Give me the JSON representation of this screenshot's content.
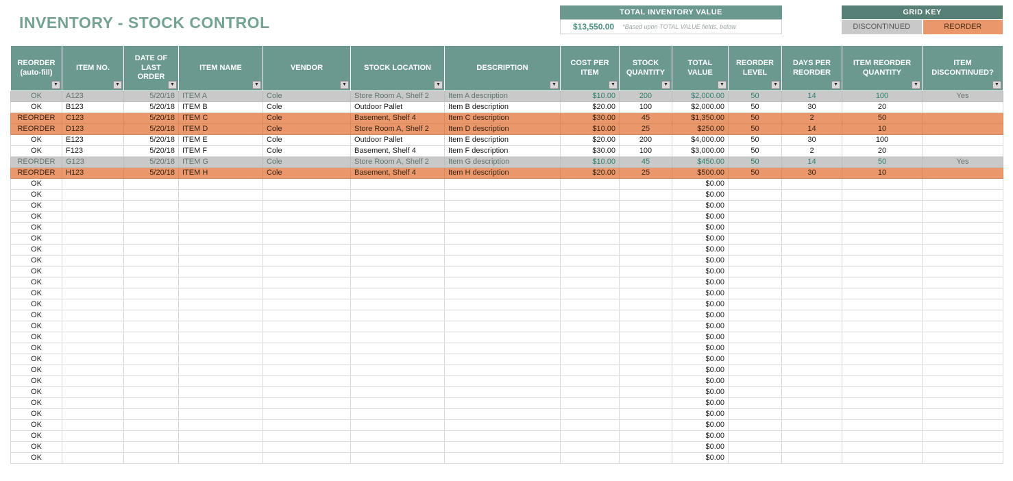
{
  "page": {
    "title": "INVENTORY - STOCK CONTROL"
  },
  "summary": {
    "title": "TOTAL INVENTORY VALUE",
    "value": "$13,550.00",
    "note": "*Based upon TOTAL VALUE fields, below."
  },
  "grid_key": {
    "title": "GRID KEY",
    "discontinued_label": "DISCONTINUED",
    "reorder_label": "REORDER"
  },
  "colors": {
    "teal_header": "#6B9990",
    "teal_dark": "#567F76",
    "title_text": "#74A294",
    "reorder_orange": "#E9976B",
    "discontinued_gray": "#C9C9C9",
    "value_text": "#4A9080"
  },
  "icons": {
    "filter_dropdown": "▼"
  },
  "table": {
    "columns": [
      {
        "key": "reorder",
        "label": "REORDER (auto-fill)"
      },
      {
        "key": "item-no",
        "label": "ITEM NO."
      },
      {
        "key": "date-of-last-order",
        "label": "DATE OF LAST ORDER"
      },
      {
        "key": "item-name",
        "label": "ITEM NAME"
      },
      {
        "key": "vendor",
        "label": "VENDOR"
      },
      {
        "key": "stock-location",
        "label": "STOCK LOCATION"
      },
      {
        "key": "description",
        "label": "DESCRIPTION"
      },
      {
        "key": "cost-per-item",
        "label": "COST PER ITEM"
      },
      {
        "key": "stock-quantity",
        "label": "STOCK QUANTITY"
      },
      {
        "key": "total-value",
        "label": "TOTAL VALUE"
      },
      {
        "key": "reorder-level",
        "label": "REORDER LEVEL"
      },
      {
        "key": "days-per-reorder",
        "label": "DAYS PER REORDER"
      },
      {
        "key": "item-reorder-quantity",
        "label": "ITEM REORDER QUANTITY"
      },
      {
        "key": "item-discontinued",
        "label": "ITEM DISCONTINUED?"
      }
    ],
    "rows": [
      {
        "status": "discontinued",
        "cells": [
          "OK",
          "A123",
          "5/20/18",
          "ITEM A",
          "Cole",
          "Store Room A, Shelf 2",
          "Item A description",
          "$10.00",
          "200",
          "$2,000.00",
          "50",
          "14",
          "100",
          "Yes"
        ]
      },
      {
        "status": "normal",
        "cells": [
          "OK",
          "B123",
          "5/20/18",
          "ITEM B",
          "Cole",
          "Outdoor Pallet",
          "Item B description",
          "$20.00",
          "100",
          "$2,000.00",
          "50",
          "30",
          "20",
          ""
        ]
      },
      {
        "status": "reorder",
        "cells": [
          "REORDER",
          "C123",
          "5/20/18",
          "ITEM C",
          "Cole",
          "Basement, Shelf 4",
          "Item C description",
          "$30.00",
          "45",
          "$1,350.00",
          "50",
          "2",
          "50",
          ""
        ]
      },
      {
        "status": "reorder",
        "cells": [
          "REORDER",
          "D123",
          "5/20/18",
          "ITEM D",
          "Cole",
          "Store Room A, Shelf 2",
          "Item D description",
          "$10.00",
          "25",
          "$250.00",
          "50",
          "14",
          "10",
          ""
        ]
      },
      {
        "status": "normal",
        "cells": [
          "OK",
          "E123",
          "5/20/18",
          "ITEM E",
          "Cole",
          "Outdoor Pallet",
          "Item E description",
          "$20.00",
          "200",
          "$4,000.00",
          "50",
          "30",
          "100",
          ""
        ]
      },
      {
        "status": "normal",
        "cells": [
          "OK",
          "F123",
          "5/20/18",
          "ITEM F",
          "Cole",
          "Basement, Shelf 4",
          "Item F description",
          "$30.00",
          "100",
          "$3,000.00",
          "50",
          "2",
          "20",
          ""
        ]
      },
      {
        "status": "discontinued",
        "cells": [
          "REORDER",
          "G123",
          "5/20/18",
          "ITEM G",
          "Cole",
          "Store Room A, Shelf 2",
          "Item G description",
          "$10.00",
          "45",
          "$450.00",
          "50",
          "14",
          "50",
          "Yes"
        ]
      },
      {
        "status": "reorder",
        "cells": [
          "REORDER",
          "H123",
          "5/20/18",
          "ITEM H",
          "Cole",
          "Basement, Shelf 4",
          "Item H description",
          "$20.00",
          "25",
          "$500.00",
          "50",
          "30",
          "10",
          ""
        ]
      }
    ],
    "empty_rows": {
      "count": 26,
      "reorder": "OK",
      "total_value": "$0.00"
    }
  }
}
